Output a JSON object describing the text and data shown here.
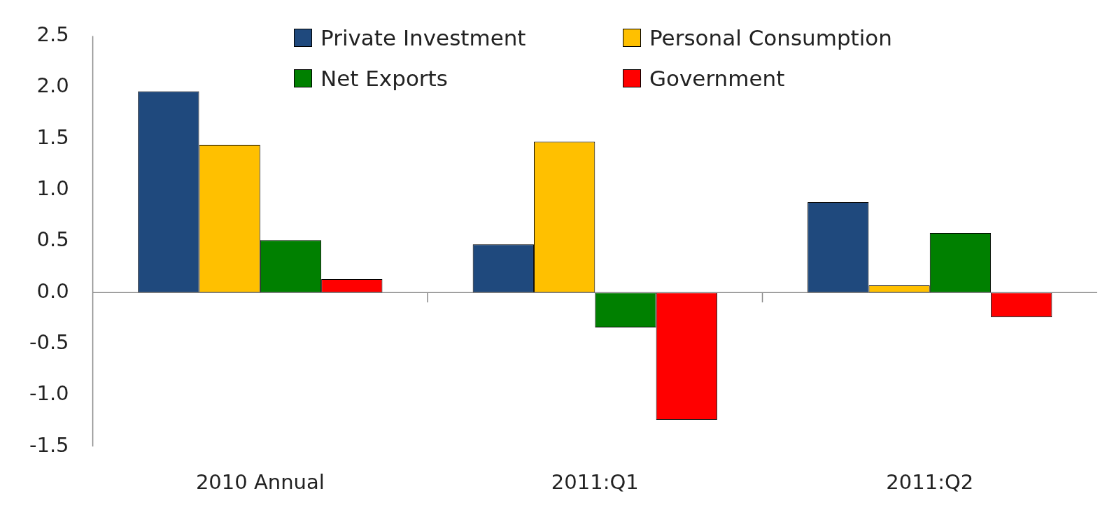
{
  "chart_data": {
    "type": "bar",
    "categories": [
      "2010 Annual",
      "2011:Q1",
      "2011:Q2"
    ],
    "series": [
      {
        "name": "Private Investment",
        "color": "#1f497d",
        "values": [
          1.96,
          0.47,
          0.88
        ]
      },
      {
        "name": "Personal Consumption",
        "color": "#ffc000",
        "values": [
          1.44,
          1.47,
          0.07
        ]
      },
      {
        "name": "Net Exports",
        "color": "#008000",
        "values": [
          0.51,
          -0.34,
          0.58
        ]
      },
      {
        "name": "Government",
        "color": "#ff0000",
        "values": [
          0.13,
          -1.24,
          -0.24
        ]
      }
    ],
    "ylim": [
      -1.5,
      2.5
    ],
    "yticks": [
      {
        "value": -1.5,
        "label": "-1.5"
      },
      {
        "value": -1,
        "label": "-1.0"
      },
      {
        "value": -0.5,
        "label": "-0.5"
      },
      {
        "value": 0,
        "label": "0.0"
      },
      0.5,
      {
        "value": 1,
        "label": "1.0"
      },
      1.5,
      {
        "value": 2,
        "label": "2.0"
      },
      2.5
    ],
    "ref_lines": [
      {
        "axis": "y",
        "value": 0,
        "color": "#888888"
      }
    ],
    "grid": false,
    "legend": "top"
  }
}
